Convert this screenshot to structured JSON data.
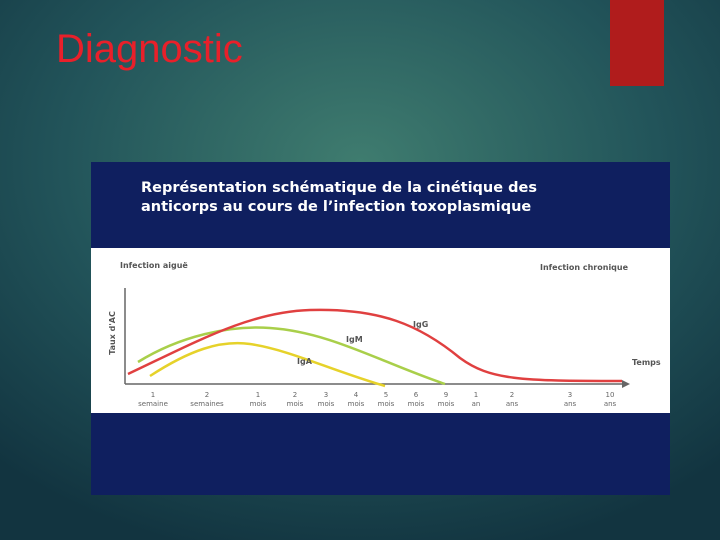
{
  "slide": {
    "title": "Diagnostic"
  },
  "figure": {
    "title_lines": [
      "Représentation schématique de la cinétique des",
      "anticorps au cours de l’infection toxoplasmique"
    ],
    "left_phase": "Infection aiguë",
    "right_phase": "Infection chronique",
    "y_label": "Taux d'AC",
    "x_label": "Temps",
    "curves": [
      "IgG",
      "IgM",
      "IgA"
    ],
    "time_ticks": [
      [
        "1",
        "semaine"
      ],
      [
        "2",
        "semaines"
      ],
      [
        "1",
        "mois"
      ],
      [
        "2",
        "mois"
      ],
      [
        "3",
        "mois"
      ],
      [
        "4",
        "mois"
      ],
      [
        "5",
        "mois"
      ],
      [
        "6",
        "mois"
      ],
      [
        "9",
        "mois"
      ],
      [
        "1",
        "an"
      ],
      [
        "2",
        "ans"
      ],
      [
        "3",
        "ans"
      ],
      [
        "10",
        "ans"
      ]
    ]
  }
}
